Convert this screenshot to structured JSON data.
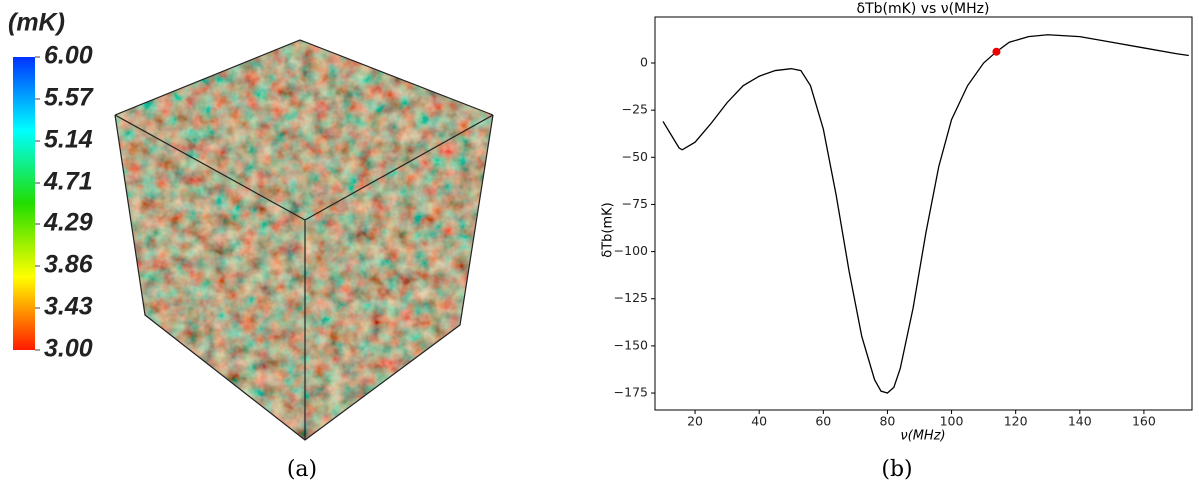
{
  "chart_data": [
    {
      "type": "colorbar",
      "title": "(mK)",
      "ylim": [
        3,
        6
      ],
      "yticks": [
        {
          "value": 3,
          "label": "3.00"
        },
        {
          "value": 3.43,
          "label": "3.43"
        },
        {
          "value": 3.86,
          "label": "3.86"
        },
        {
          "value": 4.29,
          "label": "4.29"
        },
        {
          "value": 4.71,
          "label": "4.71"
        },
        {
          "value": 5.14,
          "label": "5.14"
        },
        {
          "value": 5.57,
          "label": "5.57"
        },
        {
          "value": 6,
          "label": "6.00"
        }
      ],
      "colors": [
        "#ff1a00",
        "#ffff00",
        "#22dd00",
        "#00ffff",
        "#0033ff"
      ]
    },
    {
      "type": "line",
      "title": "δTb(mK) vs ν(MHz)",
      "xlabel": "ν(MHz)",
      "ylabel": "δTb(mK)",
      "x": [
        10,
        15,
        16,
        20,
        25,
        30,
        35,
        40,
        45,
        50,
        53,
        56,
        60,
        64,
        68,
        72,
        76,
        78,
        80,
        82,
        84,
        88,
        92,
        96,
        100,
        105,
        110,
        114,
        118,
        124,
        130,
        140,
        150,
        160,
        170,
        174
      ],
      "y": [
        -31,
        -45,
        -46,
        -42,
        -32,
        -21,
        -12,
        -7,
        -4,
        -3,
        -4,
        -12,
        -35,
        -70,
        -110,
        -145,
        -168,
        -174,
        -175,
        -172,
        -162,
        -130,
        -90,
        -55,
        -30,
        -12,
        0,
        6,
        11,
        14,
        15,
        14,
        11,
        8,
        5,
        4
      ],
      "color": "#000000",
      "marker": {
        "x": 114,
        "y": 6,
        "color": "#ee0000"
      },
      "xlim": [
        7.5,
        175
      ],
      "ylim": [
        -184,
        24.4
      ],
      "xticks": [
        20,
        40,
        60,
        80,
        100,
        120,
        140,
        160
      ],
      "yticks": [
        0,
        {
          "value": -25,
          "label": "−25"
        },
        {
          "value": -50,
          "label": "−50"
        },
        {
          "value": -75,
          "label": "−75"
        },
        {
          "value": -100,
          "label": "−100"
        },
        {
          "value": -125,
          "label": "−125"
        },
        {
          "value": -150,
          "label": "−150"
        },
        {
          "value": -175,
          "label": "−175"
        }
      ]
    }
  ],
  "captions": [
    "(a)",
    "(b)"
  ]
}
